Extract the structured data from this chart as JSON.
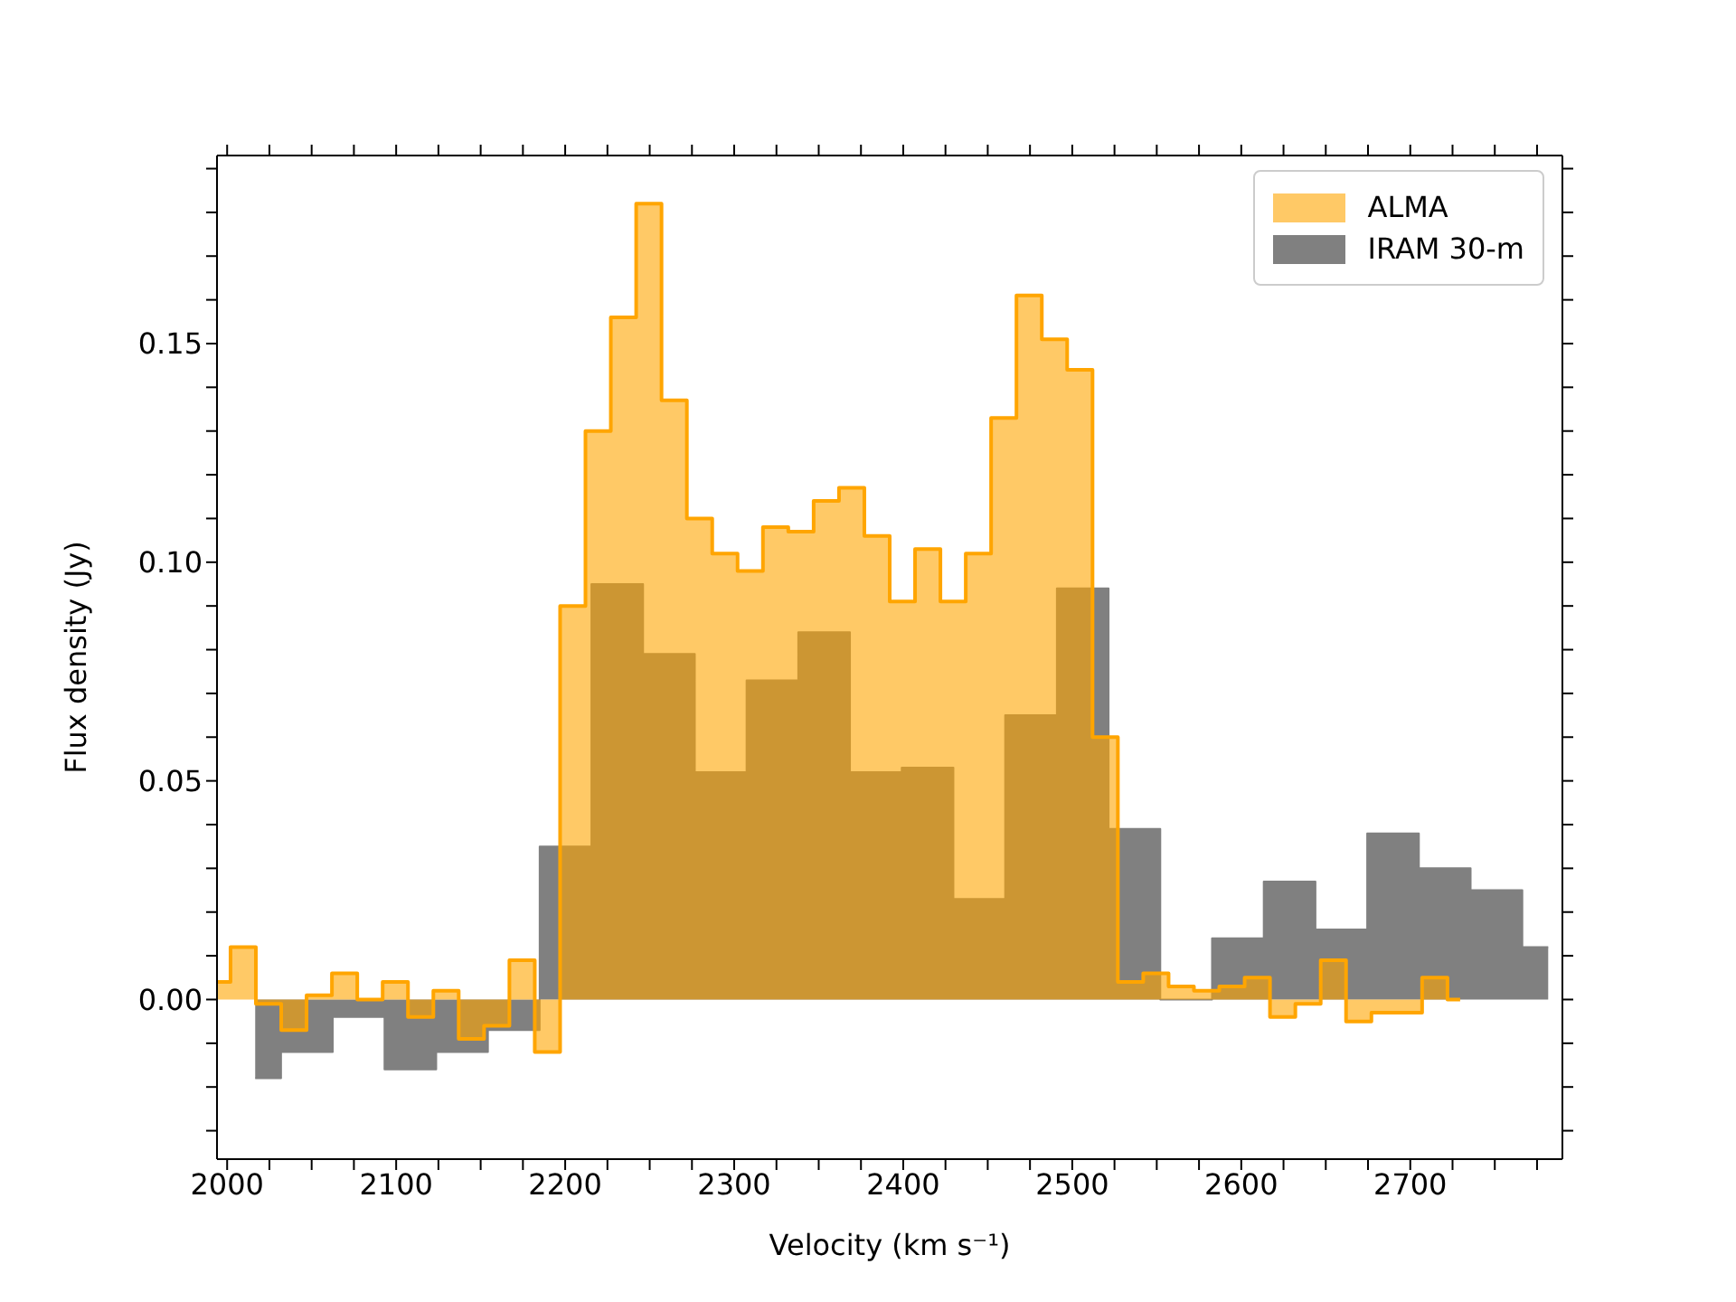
{
  "chart_data": {
    "type": "area",
    "xlabel": "Velocity (km s⁻¹)",
    "ylabel": "Flux density (Jy)",
    "xlim": [
      1994,
      2790
    ],
    "ylim": [
      -0.0365,
      0.193
    ],
    "xticks": [
      2000,
      {
        "value": 2025,
        "label": null
      },
      {
        "value": 2050,
        "label": null
      },
      {
        "value": 2075,
        "label": null
      },
      2100,
      {
        "value": 2125,
        "label": null
      },
      {
        "value": 2150,
        "label": null
      },
      {
        "value": 2175,
        "label": null
      },
      2200,
      {
        "value": 2225,
        "label": null
      },
      {
        "value": 2250,
        "label": null
      },
      {
        "value": 2275,
        "label": null
      },
      2300,
      {
        "value": 2325,
        "label": null
      },
      {
        "value": 2350,
        "label": null
      },
      {
        "value": 2375,
        "label": null
      },
      2400,
      {
        "value": 2425,
        "label": null
      },
      {
        "value": 2450,
        "label": null
      },
      {
        "value": 2475,
        "label": null
      },
      2500,
      {
        "value": 2525,
        "label": null
      },
      {
        "value": 2550,
        "label": null
      },
      {
        "value": 2575,
        "label": null
      },
      2600,
      {
        "value": 2625,
        "label": null
      },
      {
        "value": 2650,
        "label": null
      },
      {
        "value": 2675,
        "label": null
      },
      2700,
      {
        "value": 2725,
        "label": null
      },
      {
        "value": 2750,
        "label": null
      },
      {
        "value": 2775,
        "label": null
      }
    ],
    "yticks": [
      {
        "value": -0.03,
        "label": null
      },
      {
        "value": -0.02,
        "label": null
      },
      {
        "value": -0.01,
        "label": null
      },
      {
        "value": 0,
        "label": "0.00"
      },
      {
        "value": 0.01,
        "label": null
      },
      {
        "value": 0.02,
        "label": null
      },
      {
        "value": 0.03,
        "label": null
      },
      {
        "value": 0.04,
        "label": null
      },
      {
        "value": 0.05,
        "label": "0.05"
      },
      {
        "value": 0.06,
        "label": null
      },
      {
        "value": 0.07,
        "label": null
      },
      {
        "value": 0.08,
        "label": null
      },
      {
        "value": 0.09,
        "label": null
      },
      {
        "value": 0.1,
        "label": "0.10"
      },
      {
        "value": 0.11,
        "label": null
      },
      {
        "value": 0.12,
        "label": null
      },
      {
        "value": 0.13,
        "label": null
      },
      {
        "value": 0.14,
        "label": null
      },
      {
        "value": 0.15,
        "label": "0.15"
      },
      {
        "value": 0.16,
        "label": null
      },
      {
        "value": 0.17,
        "label": null
      },
      {
        "value": 0.18,
        "label": null
      },
      {
        "value": 0.19,
        "label": null
      }
    ],
    "legend": "top right",
    "series": [
      {
        "name": "ALMA",
        "color": "#ffa500",
        "x": [
          1994.5,
          2009.5,
          2024.5,
          2039.5,
          2054.5,
          2069.5,
          2084.5,
          2099.5,
          2114.5,
          2129.5,
          2144.5,
          2159.5,
          2174.5,
          2189.5,
          2204.5,
          2219.5,
          2234.5,
          2249.5,
          2264.5,
          2279.5,
          2294.5,
          2309.5,
          2324.5,
          2339.5,
          2354.5,
          2369.5,
          2384.5,
          2399.5,
          2414.5,
          2429.5,
          2444.5,
          2459.5,
          2474.5,
          2489.5,
          2504.5,
          2519.5,
          2534.5,
          2549.5,
          2564.5,
          2579.5,
          2594.5,
          2609.5,
          2624.5,
          2639.5,
          2654.5,
          2669.5,
          2684.5,
          2699.5,
          2714.5,
          2729.5
        ],
        "values": [
          0.004,
          0.012,
          -0.001,
          -0.007,
          0.001,
          0.006,
          0.0,
          0.004,
          -0.004,
          0.002,
          -0.009,
          -0.006,
          0.009,
          -0.012,
          0.09,
          0.13,
          0.156,
          0.182,
          0.137,
          0.11,
          0.102,
          0.098,
          0.108,
          0.107,
          0.114,
          0.117,
          0.106,
          0.091,
          0.103,
          0.091,
          0.102,
          0.133,
          0.161,
          0.151,
          0.144,
          0.06,
          0.004,
          0.006,
          0.003,
          0.002,
          0.003,
          0.005,
          -0.004,
          -0.001,
          0.009,
          -0.005,
          -0.003,
          -0.003,
          0.005,
          0.0
        ]
      },
      {
        "name": "IRAM 30-m",
        "color": "#808080",
        "x": [
          2016.6,
          2047.2,
          2077.8,
          2108.4,
          2139.0,
          2169.6,
          2200.2,
          2230.8,
          2261.4,
          2292.0,
          2322.6,
          2353.2,
          2383.8,
          2414.4,
          2445.0,
          2475.6,
          2506.2,
          2536.8,
          2567.4,
          2598.0,
          2628.6,
          2659.2,
          2689.8,
          2720.4,
          2751.0,
          2781.6
        ],
        "values": [
          -0.018,
          -0.012,
          -0.004,
          -0.016,
          -0.012,
          -0.007,
          0.035,
          0.095,
          0.079,
          0.052,
          0.073,
          0.084,
          0.052,
          0.053,
          0.023,
          0.065,
          0.094,
          0.039,
          0.0,
          0.014,
          0.027,
          0.016,
          0.038,
          0.03,
          0.025,
          0.012
        ]
      }
    ]
  }
}
